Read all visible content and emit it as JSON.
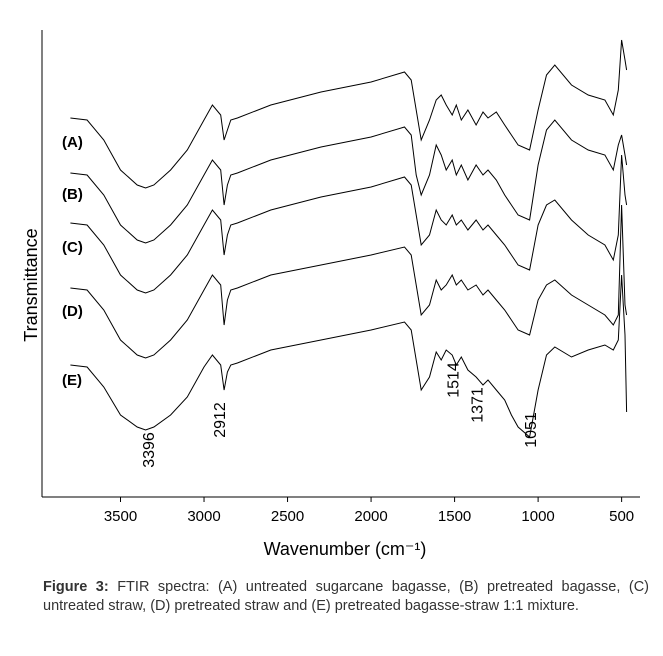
{
  "chart_data": {
    "type": "line",
    "ylabel": "Transmittance",
    "xlabel": "Wavenumber (cm⁻¹)",
    "xlim": [
      3970,
      390
    ],
    "ylim": [
      0,
      467
    ],
    "xticks": [
      3500,
      3000,
      2500,
      2000,
      1500,
      1000,
      500
    ],
    "x": [
      3800,
      3700,
      3600,
      3500,
      3400,
      3350,
      3300,
      3200,
      3100,
      3000,
      2950,
      2900,
      2880,
      2860,
      2840,
      2800,
      2600,
      2300,
      2000,
      1800,
      1760,
      1730,
      1700,
      1650,
      1610,
      1580,
      1550,
      1514,
      1490,
      1460,
      1420,
      1371,
      1330,
      1300,
      1250,
      1200,
      1160,
      1120,
      1051,
      1000,
      950,
      900,
      800,
      700,
      600,
      550,
      520,
      500,
      480,
      470
    ],
    "series": [
      {
        "name": "(A)",
        "color": "#000000",
        "values": [
          379,
          377,
          357,
          327,
          312,
          309,
          312,
          327,
          347,
          377,
          392,
          382,
          357,
          367,
          377,
          379,
          392,
          405,
          415,
          425,
          417,
          387,
          357,
          377,
          397,
          402,
          392,
          382,
          392,
          377,
          387,
          372,
          385,
          379,
          385,
          372,
          362,
          352,
          347,
          387,
          422,
          432,
          412,
          402,
          397,
          382,
          407,
          457,
          437,
          427
        ]
      },
      {
        "name": "(B)",
        "color": "#000000",
        "values": [
          324,
          322,
          302,
          272,
          257,
          254,
          257,
          272,
          292,
          322,
          337,
          327,
          292,
          312,
          322,
          324,
          337,
          350,
          360,
          370,
          362,
          322,
          302,
          322,
          352,
          342,
          327,
          337,
          322,
          332,
          317,
          332,
          322,
          327,
          317,
          302,
          292,
          282,
          277,
          332,
          367,
          377,
          357,
          347,
          342,
          327,
          352,
          362,
          342,
          332
        ]
      },
      {
        "name": "(C)",
        "color": "#000000",
        "values": [
          274,
          272,
          252,
          222,
          207,
          204,
          207,
          222,
          242,
          272,
          287,
          277,
          242,
          262,
          272,
          274,
          287,
          300,
          310,
          320,
          312,
          282,
          252,
          262,
          287,
          277,
          272,
          282,
          272,
          277,
          267,
          277,
          267,
          272,
          262,
          252,
          242,
          232,
          227,
          272,
          292,
          297,
          277,
          262,
          252,
          237,
          262,
          342,
          302,
          292
        ]
      },
      {
        "name": "(D)",
        "color": "#000000",
        "values": [
          209,
          207,
          187,
          157,
          142,
          139,
          142,
          157,
          177,
          207,
          222,
          212,
          172,
          197,
          207,
          209,
          222,
          232,
          242,
          250,
          242,
          212,
          182,
          192,
          217,
          207,
          212,
          222,
          212,
          217,
          207,
          212,
          202,
          207,
          197,
          187,
          177,
          167,
          162,
          197,
          212,
          217,
          202,
          192,
          182,
          172,
          182,
          292,
          192,
          182
        ]
      },
      {
        "name": "(E)",
        "color": "#000000",
        "values": [
          132,
          130,
          110,
          82,
          70,
          67,
          70,
          82,
          100,
          130,
          142,
          132,
          107,
          125,
          132,
          134,
          147,
          157,
          167,
          175,
          167,
          137,
          107,
          120,
          145,
          137,
          147,
          142,
          132,
          140,
          127,
          120,
          112,
          117,
          107,
          97,
          82,
          70,
          60,
          107,
          142,
          150,
          140,
          147,
          152,
          147,
          157,
          222,
          162,
          85
        ]
      }
    ],
    "peak_labels": [
      3396,
      2912,
      1514,
      1371,
      1051
    ]
  },
  "caption": {
    "label": "Figure 3:",
    "text": "FTIR spectra: (A) untreated sugarcane bagasse, (B) pretreated bagasse, (C) untreated straw, (D) pretreated straw and (E) pretreated bagasse-straw 1:1 mixture."
  }
}
